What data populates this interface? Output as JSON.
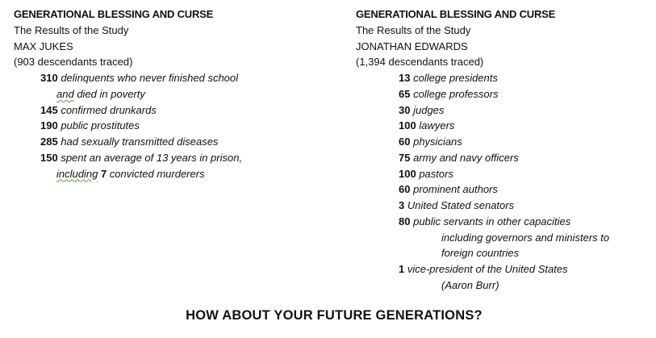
{
  "columns": [
    {
      "title": "GENERATIONAL BLESSING AND CURSE",
      "subtitle": "The Results of the Study",
      "name": "MAX JUKES",
      "traced": "(903 descendants traced)",
      "items": [
        {
          "num": "310",
          "text": "delinquents who never finished school",
          "wrap": [
            [
              {
                "text": "and",
                "squiggle": true
              },
              {
                "text": " died in poverty"
              }
            ]
          ]
        },
        {
          "num": "145",
          "text": "confirmed drunkards",
          "wrap": []
        },
        {
          "num": "190",
          "text": "public prostitutes",
          "wrap": []
        },
        {
          "num": "285",
          "text": "had sexually transmitted diseases",
          "wrap": []
        },
        {
          "num": "150",
          "text": "spent an average of 13 years in prison,",
          "wrap": [
            [
              {
                "text": "including",
                "squiggle": true
              },
              {
                "text": " "
              },
              {
                "text": "7",
                "bold": true
              },
              {
                "text": " convicted murderers"
              }
            ]
          ]
        }
      ]
    },
    {
      "title": "GENERATIONAL BLESSING AND CURSE",
      "subtitle": "The Results of the Study",
      "name": "JONATHAN EDWARDS",
      "traced": "(1,394 descendants traced)",
      "items": [
        {
          "num": "13",
          "text": "college presidents",
          "wrap": []
        },
        {
          "num": "65",
          "text": "college professors",
          "wrap": []
        },
        {
          "num": "30",
          "text": "judges",
          "wrap": []
        },
        {
          "num": "100",
          "text": "lawyers",
          "wrap": []
        },
        {
          "num": "60",
          "text": "physicians",
          "wrap": []
        },
        {
          "num": "75",
          "text": "army and navy officers",
          "wrap": []
        },
        {
          "num": "100",
          "text": "pastors",
          "wrap": []
        },
        {
          "num": "60",
          "text": "prominent authors",
          "wrap": []
        },
        {
          "num": "3",
          "text": "United Stated senators",
          "wrap": []
        },
        {
          "num": "80",
          "text": "public servants in other capacities",
          "wrap": [
            [
              {
                "text": "including governors and ministers to"
              }
            ],
            [
              {
                "text": "foreign countries"
              }
            ]
          ]
        },
        {
          "num": "1",
          "text": "vice-president of the United States",
          "wrap": [
            [
              {
                "text": "(Aaron Burr)"
              }
            ]
          ]
        }
      ]
    }
  ],
  "footer": "HOW ABOUT YOUR FUTURE GENERATIONS?"
}
